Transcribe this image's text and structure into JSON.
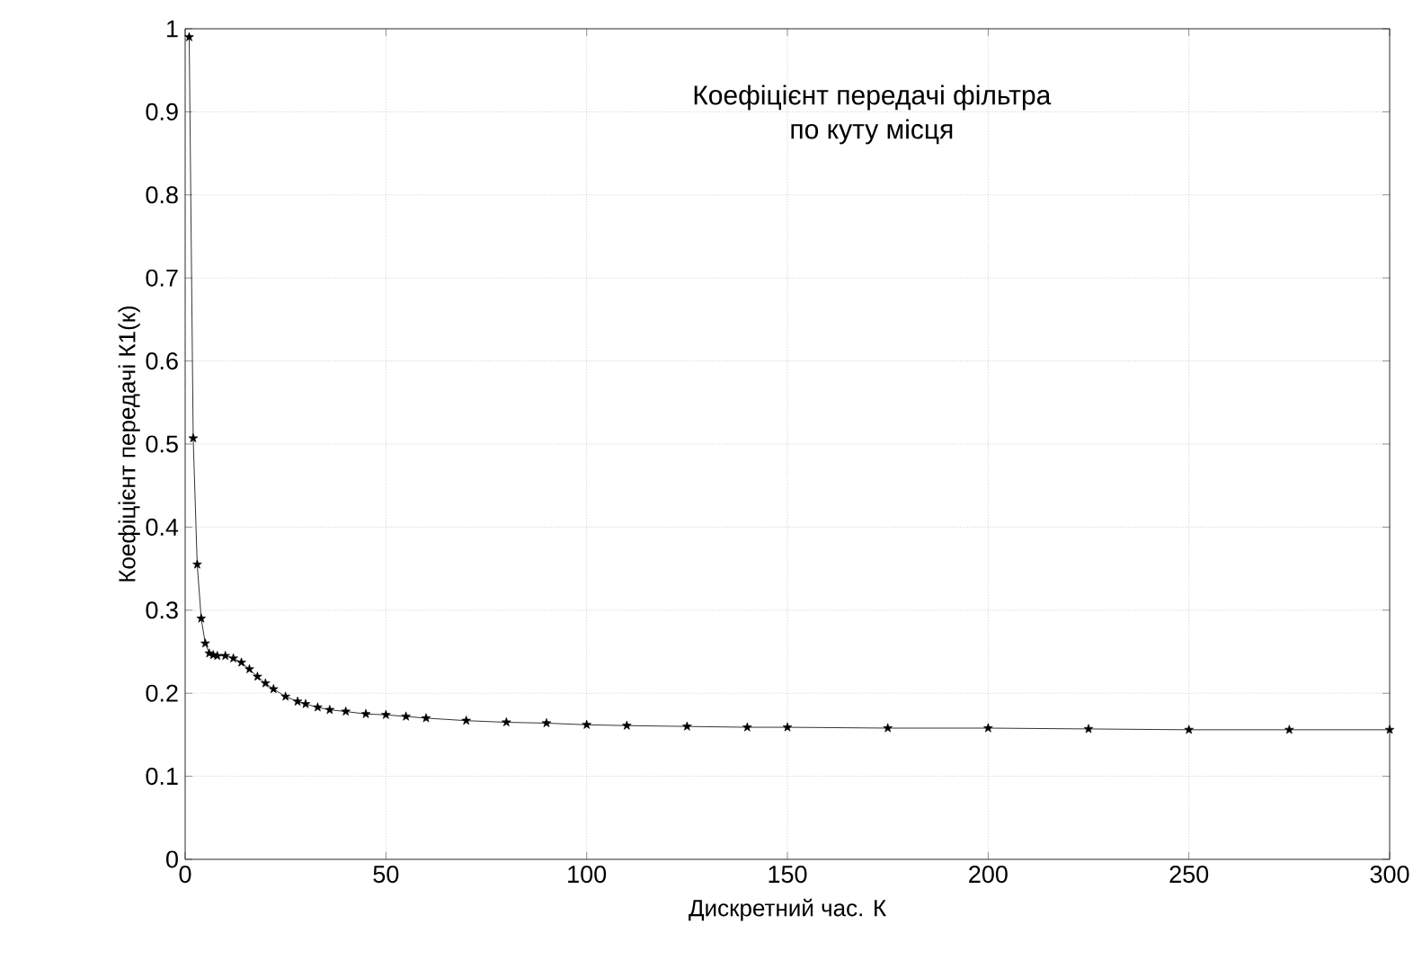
{
  "chart_data": {
    "type": "line",
    "xlabel": "Дискретний час.  К",
    "ylabel": "Коефіцієнт передачі  К1(к)",
    "annotations": [
      "Коефіцієнт передачі фільтра",
      "по куту місця"
    ],
    "x": [
      1,
      2,
      3,
      4,
      5,
      6,
      7,
      8,
      10,
      12,
      14,
      16,
      18,
      20,
      22,
      25,
      28,
      30,
      33,
      36,
      40,
      45,
      50,
      55,
      60,
      70,
      80,
      90,
      100,
      110,
      125,
      140,
      150,
      175,
      200,
      225,
      250,
      275,
      300
    ],
    "series": [
      {
        "color": "#000000",
        "values": [
          0.99,
          0.507,
          0.355,
          0.29,
          0.26,
          0.248,
          0.246,
          0.245,
          0.245,
          0.242,
          0.237,
          0.229,
          0.22,
          0.212,
          0.205,
          0.196,
          0.19,
          0.187,
          0.183,
          0.18,
          0.178,
          0.175,
          0.174,
          0.172,
          0.17,
          0.167,
          0.165,
          0.164,
          0.162,
          0.161,
          0.16,
          0.159,
          0.159,
          0.158,
          0.158,
          0.157,
          0.156,
          0.156,
          0.156
        ]
      }
    ],
    "xlim": [
      0,
      300
    ],
    "ylim": [
      0,
      1
    ],
    "xticks": [
      0,
      50,
      100,
      150,
      200,
      250,
      300
    ],
    "yticks": [
      0,
      0.1,
      0.2,
      0.3,
      0.4,
      0.5,
      0.6,
      0.7,
      0.8,
      0.9,
      1
    ],
    "grid": true,
    "marker": "star",
    "line_style": "solid"
  }
}
